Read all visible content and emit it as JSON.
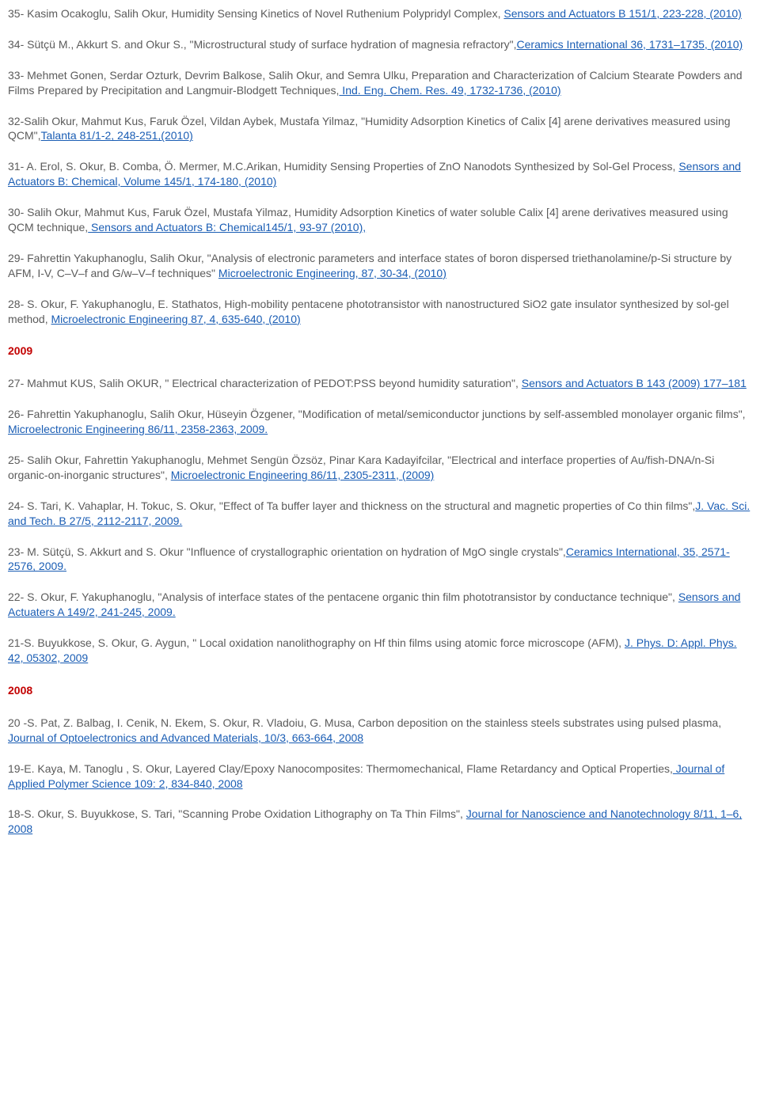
{
  "entries": [
    {
      "type": "ref",
      "pre": "35- Kasim Ocakoglu, Salih Okur, Humidity Sensing Kinetics of Novel Ruthenium Polypridyl Complex, ",
      "link": "Sensors and Actuators B 151/1, 223-228, (2010)",
      "post": ""
    },
    {
      "type": "ref",
      "pre": "34- Sütçü M., Akkurt S. and Okur S., \"Microstructural study of surface hydration of magnesia refractory\",",
      "link": "Ceramics International 36, 1731–1735, (2010)",
      "post": ""
    },
    {
      "type": "ref",
      "pre": "33- Mehmet Gonen, Serdar Ozturk, Devrim Balkose, Salih Okur, and Semra Ulku, Preparation and Characterization of Calcium Stearate Powders and Films Prepared by Precipitation and Langmuir-Blodgett Techniques,",
      "link": " Ind. Eng. Chem. Res. 49, 1732-1736, (2010)",
      "post": ""
    },
    {
      "type": "ref",
      "pre": "32-Salih Okur, Mahmut Kus, Faruk Özel, Vildan Aybek, Mustafa Yilmaz, \"Humidity Adsorption Kinetics of Calix [4] arene derivatives measured using QCM\",",
      "link": "Talanta 81/1-2, 248-251,(2010)",
      "post": ""
    },
    {
      "type": "ref",
      "pre": "31- A. Erol, S. Okur, B. Comba, Ö. Mermer, M.C.Arikan, Humidity Sensing Properties of ZnO Nanodots Synthesized by Sol-Gel Process, ",
      "link": "Sensors and Actuators B: Chemical, Volume 145/1, 174-180, (2010)",
      "post": ""
    },
    {
      "type": "ref",
      "pre": "30- Salih Okur, Mahmut Kus, Faruk Özel, Mustafa Yilmaz, Humidity Adsorption Kinetics of water soluble Calix [4] arene derivatives measured using QCM technique,",
      "link": " Sensors and Actuators B: Chemical145/1, 93-97 (2010),",
      "post": ""
    },
    {
      "type": "ref",
      "pre": "29- Fahrettin Yakuphanoglu, Salih Okur, \"Analysis of electronic parameters and interface states of boron dispersed triethanolamine/p-Si structure by AFM, I-V, C–V–f and G/w–V–f techniques\" ",
      "link": "Microelectronic Engineering, 87, 30-34, (2010)",
      "post": ""
    },
    {
      "type": "ref",
      "pre": "28- S. Okur, F. Yakuphanoglu, E. Stathatos, High-mobility pentacene phototransistor with nanostructured SiO2 gate insulator synthesized by sol-gel method, ",
      "link": "Microelectronic Engineering 87, 4, 635-640, (2010)",
      "post": ""
    },
    {
      "type": "year",
      "label": "2009"
    },
    {
      "type": "ref",
      "pre": "27- Mahmut KUS, Salih OKUR, \" Electrical characterization of PEDOT:PSS beyond humidity saturation\", ",
      "link": "Sensors and Actuators B 143 (2009) 177–181",
      "post": ""
    },
    {
      "type": "ref",
      "pre": "26- Fahrettin Yakuphanoglu, Salih Okur, Hüseyin Özgener, \"Modification of metal/semiconductor junctions by self-assembled monolayer organic films\", ",
      "link": "Microelectronic Engineering 86/11, 2358-2363, 2009.",
      "post": ""
    },
    {
      "type": "ref",
      "pre": "25- Salih Okur, Fahrettin Yakuphanoglu, Mehmet Sengün Özsöz, Pinar Kara Kadayifcilar, \"Electrical and interface properties of Au/fish-DNA/n-Si organic-on-inorganic structures\", ",
      "link": "Microelectronic Engineering 86/11, 2305-2311, (2009)",
      "post": ""
    },
    {
      "type": "ref",
      "pre": "24- S. Tari, K. Vahaplar, H. Tokuc, S. Okur, \"Effect of Ta buffer layer and thickness on the structural and magnetic properties of Co thin films\",",
      "link": "J. Vac. Sci. and Tech. B 27/5, 2112-2117, 2009.",
      "post": ""
    },
    {
      "type": "ref",
      "pre": "23- M. Sütçü, S. Akkurt and S. Okur \"Influence of crystallographic orientation on hydration of MgO single crystals\",",
      "link": "Ceramics International, 35, 2571-2576, 2009.",
      "post": ""
    },
    {
      "type": "ref",
      "pre": "22- S. Okur, F. Yakuphanoglu, \"Analysis of interface states of the pentacene organic thin film phototransistor by conductance technique\", ",
      "link": "Sensors and Actuaters A 149/2, 241-245, 2009.",
      "post": ""
    },
    {
      "type": "ref",
      "pre": "21-S. Buyukkose, S. Okur, G. Aygun, \" Local oxidation nanolithography on Hf thin films using atomic force microscope (AFM), ",
      "link": "J. Phys. D: Appl. Phys. 42, 05302, 2009",
      "post": ""
    },
    {
      "type": "year",
      "label": "2008"
    },
    {
      "type": "ref",
      "pre": "20 -S. Pat, Z. Balbag, I. Cenik, N. Ekem, S. Okur, R. Vladoiu, G. Musa, Carbon deposition on the stainless steels substrates using pulsed plasma, ",
      "link": "Journal of Optoelectronics and Advanced Materials, 10/3, 663-664, 2008",
      "post": ""
    },
    {
      "type": "ref",
      "pre": "19-E. Kaya, M. Tanoglu , S. Okur, Layered Clay/Epoxy Nanocomposites: Thermomechanical, Flame Retardancy and Optical Properties,",
      "link": " Journal of Applied Polymer Science 109: 2, 834-840, 2008",
      "post": ""
    },
    {
      "type": "ref",
      "pre": "18-S. Okur, S. Buyukkose, S. Tari, \"Scanning Probe Oxidation Lithography on Ta Thin Films\", ",
      "link": "Journal for Nanoscience and Nanotechnology 8/11, 1–6, 2008",
      "post": ""
    }
  ]
}
